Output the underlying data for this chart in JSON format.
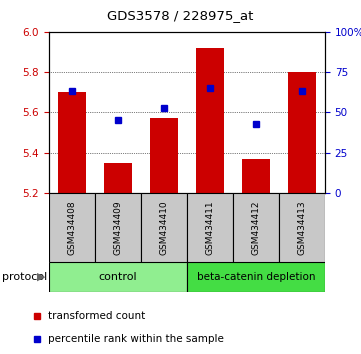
{
  "title": "GDS3578 / 228975_at",
  "samples": [
    "GSM434408",
    "GSM434409",
    "GSM434410",
    "GSM434411",
    "GSM434412",
    "GSM434413"
  ],
  "red_values": [
    5.7,
    5.35,
    5.57,
    5.92,
    5.37,
    5.8
  ],
  "blue_values": [
    63,
    45,
    53,
    65,
    43,
    63
  ],
  "ylim_left": [
    5.2,
    6.0
  ],
  "ylim_right": [
    0,
    100
  ],
  "left_ticks": [
    5.2,
    5.4,
    5.6,
    5.8,
    6.0
  ],
  "right_ticks": [
    0,
    25,
    50,
    75,
    100
  ],
  "right_tick_labels": [
    "0",
    "25",
    "50",
    "75",
    "100%"
  ],
  "bar_color": "#CC0000",
  "dot_color": "#0000CC",
  "bar_width": 0.6,
  "baseline": 5.2,
  "control_color": "#90EE90",
  "beta_color": "#44DD44",
  "sample_bg_color": "#C8C8C8",
  "left_tick_color": "#CC0000",
  "right_tick_color": "#0000CC",
  "legend_items": [
    {
      "label": "transformed count",
      "color": "#CC0000"
    },
    {
      "label": "percentile rank within the sample",
      "color": "#0000CC"
    }
  ]
}
